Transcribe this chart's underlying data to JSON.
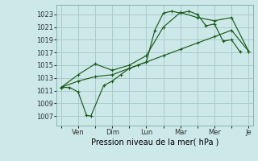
{
  "background_color": "#cce8e8",
  "grid_color": "#aacccc",
  "line_color": "#1a5c1a",
  "title": "Pression niveau de la mer( hPa )",
  "ylabel_values": [
    1007,
    1009,
    1011,
    1013,
    1015,
    1017,
    1019,
    1021,
    1023
  ],
  "xlabels": [
    "",
    "Ven",
    "",
    "Dim",
    "",
    "Lun",
    "",
    "Mar",
    "",
    "Mer",
    "",
    "Je"
  ],
  "x_ticks": [
    0,
    2,
    4,
    6,
    8,
    10,
    12,
    14,
    16,
    18,
    20,
    22
  ],
  "ylim": [
    1005.5,
    1024.5
  ],
  "xlim": [
    -0.5,
    22.5
  ],
  "series1_x": [
    0,
    1,
    2,
    3,
    3.5,
    5,
    6,
    7,
    8,
    9,
    10,
    11,
    12,
    13,
    14,
    15,
    16,
    17,
    18,
    19,
    20,
    21
  ],
  "series1_y": [
    1011.5,
    1011.5,
    1010.8,
    1007.1,
    1007.0,
    1011.8,
    1012.5,
    1013.5,
    1014.5,
    1015.0,
    1015.5,
    1020.5,
    1023.2,
    1023.5,
    1023.2,
    1023.5,
    1023.0,
    1021.2,
    1021.5,
    1018.8,
    1019.0,
    1017.1
  ],
  "series2_x": [
    0,
    2,
    4,
    6,
    8,
    10,
    12,
    14,
    16,
    18,
    20,
    22
  ],
  "series2_y": [
    1011.5,
    1013.5,
    1015.2,
    1014.2,
    1015.0,
    1016.5,
    1021.0,
    1023.3,
    1022.5,
    1022.0,
    1022.5,
    1017.2
  ],
  "series3_x": [
    0,
    2,
    4,
    6,
    8,
    10,
    12,
    14,
    16,
    18,
    20,
    22
  ],
  "series3_y": [
    1011.5,
    1012.5,
    1013.2,
    1013.5,
    1014.5,
    1015.5,
    1016.5,
    1017.5,
    1018.5,
    1019.5,
    1020.5,
    1017.2
  ],
  "tick_fontsize": 6,
  "label_fontsize": 7,
  "linewidth": 0.85,
  "markersize": 3.0
}
